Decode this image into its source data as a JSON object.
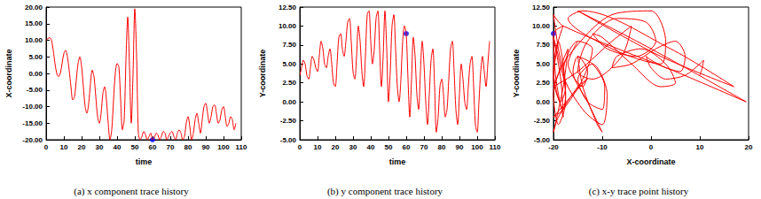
{
  "chart_data": [
    {
      "type": "line",
      "title": "(a) x component trace history",
      "xlabel": "time",
      "ylabel": "X-coordinate",
      "grid": false,
      "xlim": [
        0,
        110
      ],
      "xticks": [
        0,
        10,
        20,
        30,
        40,
        50,
        60,
        70,
        80,
        90,
        100,
        110
      ],
      "ylim": [
        -20,
        20
      ],
      "yticks": [
        {
          "value": -20,
          "label": "-20.00"
        },
        {
          "value": -15,
          "label": "-15.00"
        },
        {
          "value": -10,
          "label": "-10.00"
        },
        {
          "value": -5,
          "label": "-5.00"
        },
        {
          "value": 0,
          "label": "0.00"
        },
        {
          "value": 5,
          "label": "5.00"
        },
        {
          "value": 10,
          "label": "10.00"
        },
        {
          "value": 15,
          "label": "15.00"
        },
        {
          "value": 20,
          "label": "20.00"
        }
      ],
      "x": [
        0,
        1,
        2,
        3,
        4,
        5,
        6,
        7,
        8,
        9,
        10,
        11,
        12,
        13,
        14,
        15,
        16,
        17,
        18,
        19,
        20,
        21,
        22,
        23,
        24,
        25,
        26,
        27,
        28,
        29,
        30,
        31,
        32,
        33,
        34,
        35,
        36,
        37,
        38,
        39,
        40,
        41,
        42,
        43,
        44,
        45,
        46,
        47,
        48,
        49,
        50,
        51,
        52,
        53,
        54,
        55,
        56,
        57,
        58,
        59,
        60,
        61,
        62,
        63,
        64,
        65,
        66,
        67,
        68,
        69,
        70,
        71,
        72,
        73,
        74,
        75,
        76,
        77,
        78,
        79,
        80,
        81,
        82,
        83,
        84,
        85,
        86,
        87,
        88,
        89,
        90,
        91,
        92,
        93,
        94,
        95,
        96,
        97,
        98,
        99,
        100,
        101,
        102,
        103,
        104,
        105,
        106,
        107
      ],
      "series": [
        {
          "type": "line",
          "color": "#ff0000",
          "marker": "none",
          "values": [
            10,
            10.5,
            10.8,
            10,
            7,
            3,
            0,
            -1,
            0,
            3,
            6,
            7,
            5,
            1,
            -4,
            -8,
            -7,
            -2,
            3,
            5,
            2,
            -4,
            -10,
            -12,
            -9,
            -3,
            1,
            -1,
            -7,
            -13,
            -15,
            -12,
            -6,
            -4,
            -8,
            -15,
            -20,
            -17,
            -8,
            0,
            3,
            2,
            -8,
            -17,
            -14,
            4,
            17,
            2,
            -15,
            0,
            19.5,
            5,
            -18,
            -20,
            -19,
            -17.5,
            -18.5,
            -20,
            -19,
            -18,
            -20,
            -19.5,
            -18,
            -18.5,
            -20,
            -19,
            -17.5,
            -18,
            -20,
            -19,
            -18,
            -17.5,
            -19,
            -20,
            -18,
            -17,
            -18,
            -20,
            -19,
            -15,
            -13,
            -16,
            -20,
            -18,
            -14,
            -12,
            -15,
            -18,
            -14,
            -10,
            -9,
            -12,
            -15,
            -13,
            -10,
            -9.5,
            -12,
            -15,
            -14,
            -11,
            -10,
            -13,
            -16,
            -15,
            -13,
            -14,
            -17,
            -15
          ]
        },
        {
          "type": "scatter",
          "color": "#0000ff",
          "marker": "circle",
          "x": [
            60
          ],
          "values": [
            -20
          ]
        }
      ]
    },
    {
      "type": "line",
      "title": "(b) y component trace history",
      "xlabel": "time",
      "ylabel": "Y-coordinate",
      "grid": false,
      "xlim": [
        0,
        110
      ],
      "xticks": [
        0,
        10,
        20,
        30,
        40,
        50,
        60,
        70,
        80,
        90,
        100,
        110
      ],
      "ylim": [
        -5,
        12.5
      ],
      "yticks": [
        {
          "value": -5,
          "label": "-5.00"
        },
        {
          "value": -2.5,
          "label": "-2.50"
        },
        {
          "value": 0,
          "label": "0.00"
        },
        {
          "value": 2.5,
          "label": "2.50"
        },
        {
          "value": 5,
          "label": "5.00"
        },
        {
          "value": 7.5,
          "label": "7.50"
        },
        {
          "value": 10,
          "label": "10.00"
        },
        {
          "value": 12.5,
          "label": "12.50"
        }
      ],
      "x": [
        0,
        1,
        2,
        3,
        4,
        5,
        6,
        7,
        8,
        9,
        10,
        11,
        12,
        13,
        14,
        15,
        16,
        17,
        18,
        19,
        20,
        21,
        22,
        23,
        24,
        25,
        26,
        27,
        28,
        29,
        30,
        31,
        32,
        33,
        34,
        35,
        36,
        37,
        38,
        39,
        40,
        41,
        42,
        43,
        44,
        45,
        46,
        47,
        48,
        49,
        50,
        51,
        52,
        53,
        54,
        55,
        56,
        57,
        58,
        59,
        60,
        61,
        62,
        63,
        64,
        65,
        66,
        67,
        68,
        69,
        70,
        71,
        72,
        73,
        74,
        75,
        76,
        77,
        78,
        79,
        80,
        81,
        82,
        83,
        84,
        85,
        86,
        87,
        88,
        89,
        90,
        91,
        92,
        93,
        94,
        95,
        96,
        97,
        98,
        99,
        100,
        101,
        102,
        103,
        104,
        105,
        106,
        107
      ],
      "series": [
        {
          "type": "line",
          "color": "#ff0000",
          "marker": "none",
          "values": [
            3.5,
            4.5,
            5.5,
            5,
            3.5,
            3,
            4.5,
            6,
            5.5,
            4.5,
            4,
            6,
            8,
            7,
            5,
            4.5,
            6,
            7,
            5,
            2.5,
            2,
            5,
            8.5,
            9,
            7,
            6,
            8,
            10.5,
            11,
            8,
            4,
            3,
            6,
            10,
            8,
            4,
            2,
            6,
            11.5,
            12,
            8,
            5,
            7,
            11,
            12,
            7,
            2,
            6,
            12,
            7,
            0,
            4,
            10,
            11.5,
            7,
            2,
            0,
            3,
            8,
            10,
            9,
            3,
            -2,
            3,
            8.5,
            6,
            1,
            -1,
            4,
            8,
            5,
            0,
            -3,
            1,
            5.5,
            7,
            2,
            -4,
            -2,
            2,
            3,
            1,
            -2,
            -1,
            3,
            7,
            8,
            4,
            -1,
            -3,
            1,
            5,
            3,
            0,
            -1,
            2,
            5,
            6,
            2,
            -3,
            -4,
            0,
            4,
            6,
            4,
            2,
            5,
            8
          ]
        },
        {
          "type": "scatter",
          "color": "#0000ff",
          "marker": "circle",
          "x": [
            60
          ],
          "values": [
            9
          ]
        }
      ]
    },
    {
      "type": "line",
      "title": "(c) x-y trace point history",
      "xlabel": "X-coordinate",
      "ylabel": "Y-coordinate",
      "grid": false,
      "xlim": [
        -20,
        20
      ],
      "xticks": [
        -20,
        -10,
        0,
        10,
        20
      ],
      "ylim": [
        -5,
        12.5
      ],
      "yticks": [
        {
          "value": -5,
          "label": "-5.00"
        },
        {
          "value": -2.5,
          "label": "-2.50"
        },
        {
          "value": 0,
          "label": "0.00"
        },
        {
          "value": 2.5,
          "label": "2.50"
        },
        {
          "value": 5,
          "label": "5.00"
        },
        {
          "value": 7.5,
          "label": "7.50"
        },
        {
          "value": 10,
          "label": "10.00"
        },
        {
          "value": 12.5,
          "label": "12.50"
        }
      ],
      "x": [
        10,
        10.5,
        10.8,
        10,
        7,
        3,
        0,
        -1,
        0,
        3,
        6,
        7,
        5,
        1,
        -4,
        -8,
        -7,
        -2,
        3,
        5,
        2,
        -4,
        -10,
        -12,
        -9,
        -3,
        1,
        -1,
        -7,
        -13,
        -15,
        -12,
        -6,
        -4,
        -8,
        -15,
        -20,
        -17,
        -8,
        0,
        3,
        2,
        -8,
        -17,
        -14,
        4,
        17,
        2,
        -15,
        0,
        19.5,
        5,
        -18,
        -20,
        -19,
        -17.5,
        -18.5,
        -20,
        -19,
        -18,
        -20,
        -19.5,
        -18,
        -18.5,
        -20,
        -19,
        -17.5,
        -18,
        -20,
        -19,
        -18,
        -17.5,
        -19,
        -20,
        -18,
        -17,
        -18,
        -20,
        -19,
        -15,
        -13,
        -16,
        -20,
        -18,
        -14,
        -12,
        -15,
        -18,
        -14,
        -10,
        -9,
        -12,
        -15,
        -13,
        -10,
        -9.5,
        -12,
        -15,
        -14,
        -11,
        -10,
        -13,
        -16,
        -15,
        -13,
        -14,
        -17,
        -15
      ],
      "series": [
        {
          "type": "line",
          "color": "#ff0000",
          "marker": "none",
          "values": [
            3.5,
            4.5,
            5.5,
            5,
            3.5,
            3,
            4.5,
            6,
            5.5,
            4.5,
            4,
            6,
            8,
            7,
            5,
            4.5,
            6,
            7,
            5,
            2.5,
            2,
            5,
            8.5,
            9,
            7,
            6,
            8,
            10.5,
            11,
            8,
            4,
            3,
            6,
            10,
            8,
            4,
            2,
            6,
            11.5,
            12,
            8,
            5,
            7,
            11,
            12,
            7,
            2,
            6,
            12,
            7,
            0,
            4,
            10,
            11.5,
            7,
            2,
            0,
            3,
            8,
            10,
            9,
            3,
            -2,
            3,
            8.5,
            6,
            1,
            -1,
            4,
            8,
            5,
            0,
            -3,
            1,
            5.5,
            7,
            2,
            -4,
            -2,
            2,
            3,
            1,
            -2,
            -1,
            3,
            7,
            8,
            4,
            -1,
            -3,
            1,
            5,
            3,
            0,
            -1,
            2,
            5,
            6,
            2,
            -3,
            -4,
            0,
            4,
            6,
            4,
            2,
            5,
            8
          ]
        },
        {
          "type": "scatter",
          "color": "#0000ff",
          "marker": "circle",
          "x": [
            -20
          ],
          "values": [
            9
          ]
        }
      ]
    }
  ]
}
